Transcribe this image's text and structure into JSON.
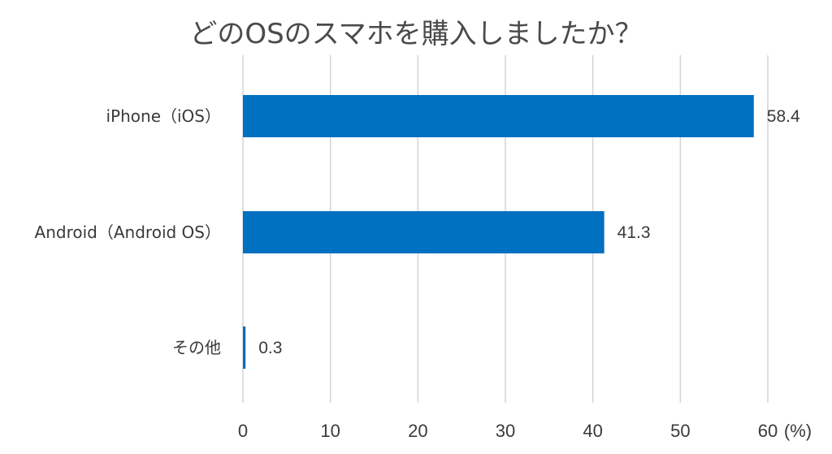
{
  "chart_data": {
    "type": "bar",
    "orientation": "horizontal",
    "title": "どのOSのスマホを購入しましたか？",
    "categories": [
      "iPhone（iOS）",
      "Android（Android OS）",
      "その他"
    ],
    "values": [
      58.4,
      41.3,
      0.3
    ],
    "value_labels": [
      "58.4",
      "41.3",
      "0.3"
    ],
    "xlim": [
      0,
      60
    ],
    "x_ticks": [
      0,
      10,
      20,
      30,
      40,
      50,
      60
    ],
    "x_tick_labels": [
      "0",
      "10",
      "20",
      "30",
      "40",
      "50",
      "60"
    ],
    "x_unit": "(%)",
    "grid": true,
    "legend": "none",
    "bar_color": "#0070C0"
  }
}
